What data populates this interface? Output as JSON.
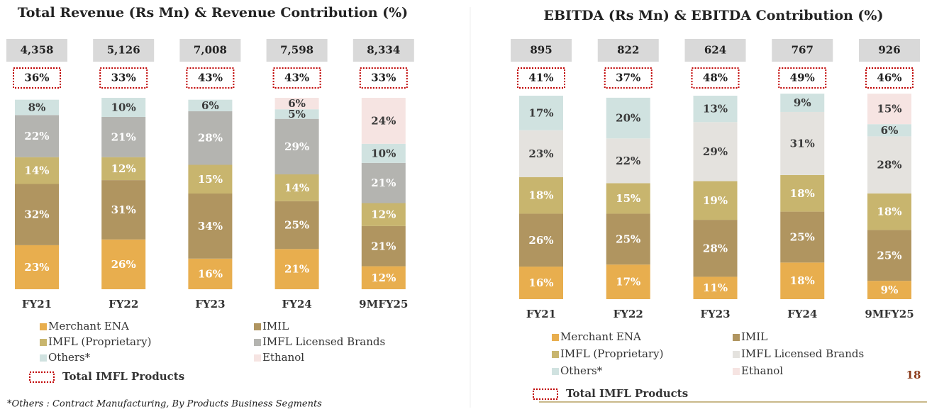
{
  "chart_data": [
    {
      "type": "stacked_bar",
      "title": "Total Revenue (Rs Mn) & Revenue Contribution (%)",
      "categories": [
        "FY21",
        "FY22",
        "FY23",
        "FY24",
        "9MFY25"
      ],
      "ylim": [
        0,
        100
      ],
      "totals": {
        "values": [
          4358,
          5126,
          7008,
          7598,
          8334
        ],
        "value_labels": [
          "4,358",
          "5,126",
          "7,008",
          "7,598",
          "8,334"
        ]
      },
      "imfl_share": {
        "name": "Total IMFL Products",
        "values": [
          36,
          33,
          43,
          43,
          33
        ],
        "value_labels": [
          "36%",
          "33%",
          "43%",
          "43%",
          "33%"
        ]
      },
      "series": [
        {
          "name": "Merchant ENA",
          "color": "#e8ae4e",
          "values": [
            23,
            26,
            16,
            21,
            12
          ],
          "value_labels": [
            "23%",
            "26%",
            "16%",
            "21%",
            "12%"
          ]
        },
        {
          "name": "IMIL",
          "color": "#b09560",
          "values": [
            32,
            31,
            34,
            25,
            21
          ],
          "value_labels": [
            "32%",
            "31%",
            "34%",
            "25%",
            "21%"
          ]
        },
        {
          "name": "IMFL (Proprietary)",
          "color": "#c8b56e",
          "values": [
            14,
            12,
            15,
            14,
            12
          ],
          "value_labels": [
            "14%",
            "12%",
            "15%",
            "14%",
            "12%"
          ]
        },
        {
          "name": "IMFL Licensed Brands",
          "color": "#b4b4b0",
          "values": [
            22,
            21,
            28,
            29,
            21
          ],
          "value_labels": [
            "22%",
            "21%",
            "28%",
            "29%",
            "21%"
          ]
        },
        {
          "name": "Others*",
          "color": "#d0e2e0",
          "values": [
            8,
            10,
            6,
            5,
            10
          ],
          "value_labels": [
            "8%",
            "10%",
            "6%",
            "5%",
            "10%"
          ]
        },
        {
          "name": "Ethanol",
          "color": "#f6e4e2",
          "values": [
            null,
            null,
            null,
            6,
            24
          ],
          "value_labels": [
            null,
            null,
            null,
            "6%",
            "24%"
          ]
        }
      ]
    },
    {
      "type": "stacked_bar",
      "title": "EBITDA (Rs Mn) & EBITDA Contribution (%)",
      "categories": [
        "FY21",
        "FY22",
        "FY23",
        "FY24",
        "9MFY25"
      ],
      "ylim": [
        0,
        100
      ],
      "totals": {
        "values": [
          895,
          822,
          624,
          767,
          926
        ]
      },
      "imfl_share": {
        "name": "Total IMFL Products",
        "values": [
          41,
          37,
          48,
          49,
          46
        ],
        "value_labels": [
          "41%",
          "37%",
          "48%",
          "49%",
          "46%"
        ]
      },
      "series": [
        {
          "name": "Merchant ENA",
          "color": "#e8ae4e",
          "values": [
            16,
            17,
            11,
            18,
            9
          ],
          "value_labels": [
            "16%",
            "17%",
            "11%",
            "18%",
            "9%"
          ]
        },
        {
          "name": "IMIL",
          "color": "#b09560",
          "values": [
            26,
            25,
            28,
            25,
            25
          ],
          "value_labels": [
            "26%",
            "25%",
            "28%",
            "25%",
            "25%"
          ]
        },
        {
          "name": "IMFL (Proprietary)",
          "color": "#c8b56e",
          "values": [
            18,
            15,
            19,
            18,
            18
          ],
          "value_labels": [
            "18%",
            "15%",
            "19%",
            "18%",
            "18%"
          ]
        },
        {
          "name": "IMFL Licensed Brands",
          "color": "#e4e2de",
          "values": [
            23,
            22,
            29,
            31,
            28
          ],
          "value_labels": [
            "23%",
            "22%",
            "29%",
            "31%",
            "28%"
          ]
        },
        {
          "name": "Others*",
          "color": "#d0e2e0",
          "values": [
            17,
            20,
            13,
            9,
            6
          ],
          "value_labels": [
            "17%",
            "20%",
            "13%",
            "9%",
            "6%"
          ]
        },
        {
          "name": "Ethanol",
          "color": "#f6e4e2",
          "values": [
            null,
            null,
            null,
            null,
            15
          ],
          "value_labels": [
            null,
            null,
            null,
            null,
            "15%"
          ]
        }
      ]
    }
  ],
  "footnote": "*Others : Contract Manufacturing, By Products Business Segments",
  "page_number": "18"
}
